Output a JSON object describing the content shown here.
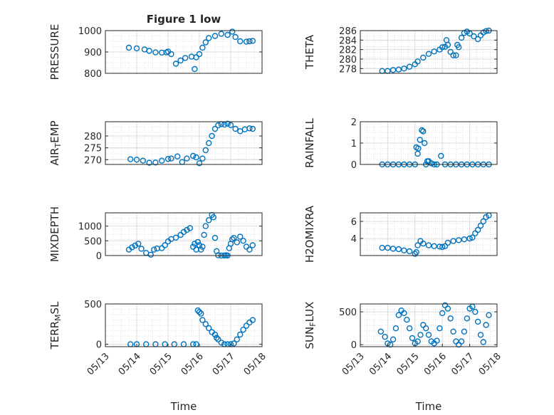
{
  "figure": {
    "title": "Figure 1 low"
  },
  "chart_data": [
    {
      "id": "pressure",
      "type": "scatter",
      "title": "Figure 1 low",
      "xlabel": "",
      "ylabel": "PRESSURE",
      "ylim": [
        800,
        1000
      ],
      "yticks": [
        800,
        900,
        1000
      ],
      "yticklabels": [
        "800",
        "900",
        "1000"
      ],
      "xlim": [
        0,
        5
      ],
      "xticks": [],
      "xticklabels": [],
      "grid": true,
      "color": "#0072BD",
      "series": [
        {
          "x": [
            0.75,
            1.0,
            1.25,
            1.4,
            1.6,
            1.8,
            1.95,
            2.0,
            2.1,
            2.25,
            2.4,
            2.55,
            2.75,
            2.85,
            2.9,
            3.0,
            3.1,
            3.2,
            3.3,
            3.5,
            3.7,
            3.9,
            4.05,
            4.15,
            4.3,
            4.5,
            4.6,
            4.7
          ],
          "y": [
            920,
            917,
            912,
            905,
            898,
            897,
            898,
            902,
            890,
            845,
            860,
            872,
            878,
            820,
            875,
            890,
            920,
            945,
            965,
            975,
            985,
            980,
            995,
            970,
            950,
            948,
            950,
            952
          ]
        }
      ]
    },
    {
      "id": "theta",
      "type": "scatter",
      "xlabel": "",
      "ylabel": "THETA",
      "ylim": [
        277,
        286
      ],
      "yticks": [
        278,
        280,
        282,
        284,
        286
      ],
      "yticklabels": [
        "278",
        "280",
        "282",
        "284",
        "286"
      ],
      "xlim": [
        0,
        5
      ],
      "xticks": [],
      "xticklabels": [],
      "grid": true,
      "color": "#0072BD",
      "series": [
        {
          "x": [
            0.8,
            1.0,
            1.2,
            1.4,
            1.6,
            1.8,
            2.0,
            2.1,
            2.3,
            2.5,
            2.7,
            2.9,
            3.0,
            3.1,
            3.15,
            3.2,
            3.3,
            3.4,
            3.5,
            3.55,
            3.6,
            3.7,
            3.8,
            3.9,
            4.0,
            4.15,
            4.3,
            4.4,
            4.5,
            4.6,
            4.7
          ],
          "y": [
            277.5,
            277.5,
            277.7,
            277.8,
            278.0,
            278.4,
            278.9,
            279.5,
            280.3,
            281.1,
            281.6,
            282.0,
            282.5,
            282.6,
            284.0,
            283.0,
            281.5,
            280.8,
            280.8,
            283.0,
            282.5,
            284.5,
            285.5,
            285.8,
            285.4,
            284.8,
            284.2,
            285.0,
            285.6,
            285.9,
            286.0
          ]
        }
      ]
    },
    {
      "id": "air_temp",
      "type": "scatter",
      "xlabel": "",
      "ylabel": "AIR_TEMP",
      "ylim": [
        268,
        286
      ],
      "yticks": [
        270,
        275,
        280
      ],
      "yticklabels": [
        "270",
        "275",
        "280"
      ],
      "xlim": [
        0,
        5
      ],
      "xticks": [],
      "xticklabels": [],
      "grid": true,
      "color": "#0072BD",
      "series": [
        {
          "x": [
            0.8,
            1.0,
            1.2,
            1.4,
            1.6,
            1.8,
            2.0,
            2.1,
            2.3,
            2.45,
            2.6,
            2.8,
            2.9,
            3.0,
            3.1,
            3.2,
            3.3,
            3.4,
            3.5,
            3.6,
            3.7,
            3.8,
            3.9,
            4.0,
            4.15,
            4.3,
            4.45,
            4.6,
            4.7
          ],
          "y": [
            270.2,
            270.0,
            269.6,
            268.7,
            268.8,
            269.6,
            270.3,
            270.5,
            271.4,
            269.0,
            270.5,
            271.6,
            271.0,
            268.5,
            270.5,
            274.0,
            277.0,
            280.0,
            283.0,
            284.5,
            285.0,
            284.8,
            285.2,
            284.6,
            283.0,
            282.0,
            282.8,
            283.2,
            283.0
          ]
        }
      ]
    },
    {
      "id": "rainfall",
      "type": "scatter",
      "xlabel": "",
      "ylabel": "RAINFALL",
      "ylim": [
        0,
        2
      ],
      "yticks": [
        0,
        1,
        2
      ],
      "yticklabels": [
        "0",
        "1",
        "2"
      ],
      "xlim": [
        0,
        5
      ],
      "xticks": [],
      "xticklabels": [],
      "grid": true,
      "color": "#0072BD",
      "series": [
        {
          "x": [
            0.8,
            1.0,
            1.2,
            1.4,
            1.6,
            1.8,
            2.0,
            2.05,
            2.1,
            2.12,
            2.18,
            2.25,
            2.3,
            2.35,
            2.4,
            2.45,
            2.5,
            2.6,
            2.7,
            2.8,
            2.95,
            3.1,
            3.3,
            3.5,
            3.7,
            3.9,
            4.1,
            4.3,
            4.5,
            4.7
          ],
          "y": [
            0,
            0,
            0,
            0,
            0,
            0,
            0,
            0.8,
            0.5,
            0.75,
            1.15,
            1.6,
            1.55,
            1.0,
            0,
            0.15,
            0.15,
            0.05,
            0,
            0,
            0.4,
            0,
            0,
            0,
            0,
            0,
            0,
            0,
            0,
            0
          ]
        }
      ]
    },
    {
      "id": "mixdepth",
      "type": "scatter",
      "xlabel": "",
      "ylabel": "MIXDEPTH",
      "ylim": [
        0,
        1450
      ],
      "yticks": [
        0,
        500,
        1000
      ],
      "yticklabels": [
        "0",
        "500",
        "1000"
      ],
      "xlim": [
        0,
        5
      ],
      "xticks": [],
      "xticklabels": [],
      "grid": true,
      "color": "#0072BD",
      "series": [
        {
          "x": [
            0.75,
            0.85,
            0.95,
            1.05,
            1.15,
            1.3,
            1.45,
            1.55,
            1.65,
            1.8,
            1.9,
            2.0,
            2.1,
            2.25,
            2.4,
            2.5,
            2.6,
            2.7,
            2.8,
            2.85,
            2.9,
            2.95,
            3.0,
            3.05,
            3.1,
            3.15,
            3.2,
            3.3,
            3.4,
            3.45,
            3.5,
            3.55,
            3.6,
            3.7,
            3.8,
            3.85,
            3.9,
            3.95,
            4.0,
            4.05,
            4.1,
            4.2,
            4.3,
            4.4,
            4.5,
            4.6,
            4.7
          ],
          "y": [
            200,
            280,
            340,
            400,
            230,
            90,
            30,
            200,
            240,
            250,
            350,
            480,
            560,
            610,
            700,
            800,
            870,
            930,
            300,
            400,
            200,
            460,
            350,
            200,
            300,
            700,
            1000,
            1200,
            1380,
            1300,
            600,
            150,
            10,
            0,
            0,
            10,
            0,
            250,
            400,
            550,
            600,
            450,
            640,
            500,
            300,
            200,
            350
          ]
        }
      ]
    },
    {
      "id": "h2omixra",
      "type": "scatter",
      "xlabel": "",
      "ylabel": "H2OMIXRA",
      "ylim": [
        2,
        7
      ],
      "yticks": [
        4,
        6
      ],
      "yticklabels": [
        "4",
        "6"
      ],
      "xlim": [
        0,
        5
      ],
      "xticks": [],
      "xticklabels": [],
      "grid": true,
      "color": "#0072BD",
      "series": [
        {
          "x": [
            0.8,
            1.0,
            1.2,
            1.4,
            1.6,
            1.8,
            2.0,
            2.05,
            2.1,
            2.2,
            2.3,
            2.5,
            2.7,
            2.9,
            3.0,
            3.1,
            3.2,
            3.4,
            3.6,
            3.8,
            4.0,
            4.1,
            4.2,
            4.3,
            4.4,
            4.5,
            4.6,
            4.7
          ],
          "y": [
            2.9,
            2.9,
            2.8,
            2.75,
            2.6,
            2.5,
            2.2,
            2.4,
            3.2,
            3.7,
            3.4,
            3.2,
            3.1,
            3.05,
            3.0,
            3.1,
            3.5,
            3.7,
            3.8,
            3.9,
            4.0,
            4.1,
            4.6,
            5.0,
            5.5,
            6.0,
            6.5,
            6.7
          ]
        }
      ]
    },
    {
      "id": "terr_msl",
      "type": "scatter",
      "xlabel": "Time",
      "ylabel": "TERR_MSL",
      "ylim": [
        -30,
        500
      ],
      "yticks": [
        0,
        500
      ],
      "yticklabels": [
        "0",
        "500"
      ],
      "xlim": [
        0,
        5
      ],
      "xticks": [
        0,
        1,
        2,
        3,
        4,
        5
      ],
      "xticklabels": [
        "05/13",
        "05/14",
        "05/15",
        "05/16",
        "05/17",
        "05/18"
      ],
      "grid": true,
      "color": "#0072BD",
      "series": [
        {
          "x": [
            0.8,
            1.0,
            1.3,
            1.6,
            1.9,
            2.2,
            2.5,
            2.8,
            2.9,
            2.95,
            3.0,
            3.05,
            3.1,
            3.2,
            3.3,
            3.4,
            3.5,
            3.55,
            3.6,
            3.7,
            3.8,
            3.9,
            4.0,
            4.1,
            4.2,
            4.3,
            4.4,
            4.5,
            4.6,
            4.7
          ],
          "y": [
            0,
            0,
            0,
            0,
            0,
            0,
            0,
            0,
            0,
            420,
            400,
            380,
            300,
            250,
            200,
            150,
            120,
            80,
            60,
            20,
            0,
            0,
            0,
            10,
            60,
            120,
            180,
            230,
            270,
            300
          ]
        }
      ]
    },
    {
      "id": "sun_flux",
      "type": "scatter",
      "xlabel": "Time",
      "ylabel": "SUN_FLUX",
      "ylim": [
        -30,
        620
      ],
      "yticks": [
        0,
        500
      ],
      "yticklabels": [
        "0",
        "500"
      ],
      "xlim": [
        0,
        5
      ],
      "xticks": [
        0,
        1,
        2,
        3,
        4,
        5
      ],
      "xticklabels": [
        "05/13",
        "05/14",
        "05/15",
        "05/16",
        "05/17",
        "05/18"
      ],
      "grid": true,
      "color": "#0072BD",
      "series": [
        {
          "x": [
            0.75,
            0.9,
            1.0,
            1.1,
            1.2,
            1.3,
            1.4,
            1.5,
            1.6,
            1.7,
            1.8,
            1.9,
            2.0,
            2.1,
            2.2,
            2.3,
            2.4,
            2.5,
            2.6,
            2.7,
            2.8,
            2.9,
            3.0,
            3.1,
            3.2,
            3.3,
            3.4,
            3.5,
            3.6,
            3.7,
            3.8,
            3.9,
            4.0,
            4.1,
            4.2,
            4.3,
            4.4,
            4.5,
            4.6,
            4.7
          ],
          "y": [
            200,
            120,
            20,
            0,
            80,
            250,
            450,
            520,
            480,
            380,
            250,
            100,
            20,
            50,
            150,
            300,
            250,
            150,
            50,
            20,
            60,
            250,
            480,
            600,
            550,
            400,
            200,
            50,
            0,
            50,
            200,
            400,
            550,
            580,
            500,
            350,
            150,
            40,
            300,
            450
          ]
        }
      ]
    }
  ]
}
